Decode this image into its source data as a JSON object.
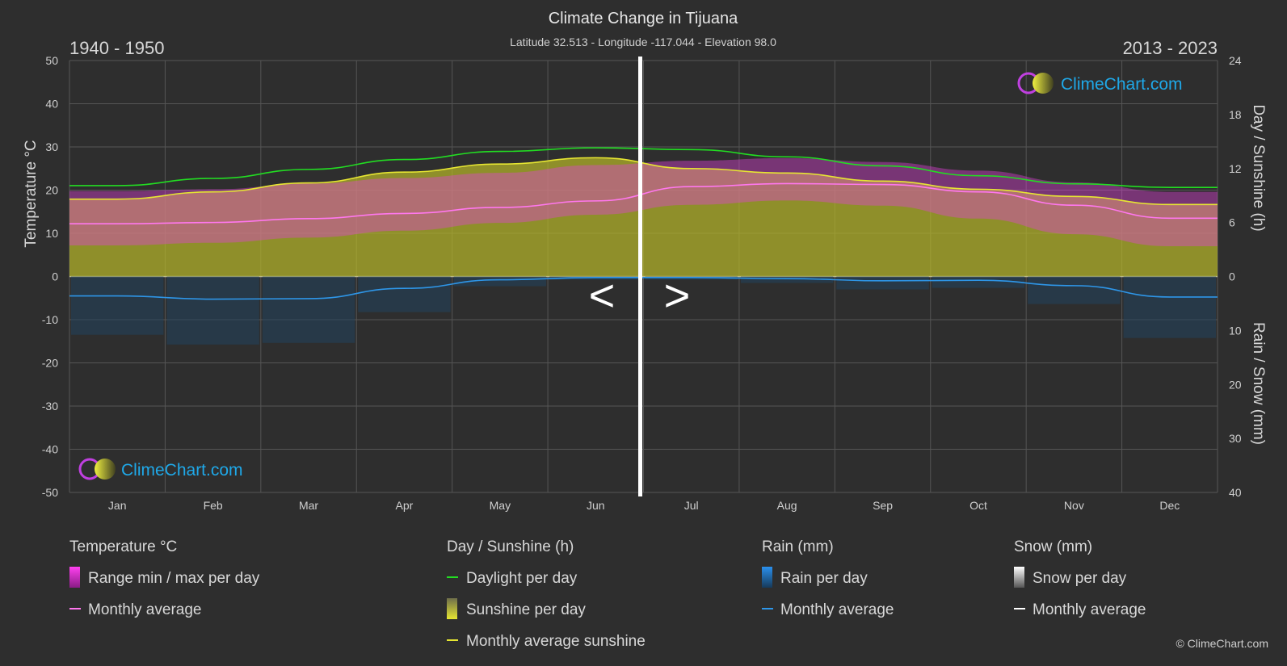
{
  "header": {
    "title": "Climate Change in Tijuana",
    "subtitle": "Latitude 32.513 - Longitude -117.044 - Elevation 98.0",
    "period_left": "1940 - 1950",
    "period_right": "2013 - 2023"
  },
  "nav": {
    "prev_label": "<",
    "next_label": ">"
  },
  "brand": {
    "name": "ClimeChart.com",
    "copyright": "© ClimeChart.com"
  },
  "colors": {
    "background": "#2e2e2e",
    "temperature_range": "#e040d8",
    "temperature_avg": "#ff77ee",
    "daylight": "#22dd22",
    "sunshine": "#b5b52a",
    "sunshine_avg": "#e6e632",
    "rain": "#1f7fd0",
    "rain_avg": "#2e96e8",
    "snow": "#dddddd"
  },
  "chart_data": {
    "type": "area",
    "months": [
      "Jan",
      "Feb",
      "Mar",
      "Apr",
      "May",
      "Jun",
      "Jul",
      "Aug",
      "Sep",
      "Oct",
      "Nov",
      "Dec"
    ],
    "axes": {
      "left": {
        "label": "Temperature °C",
        "range": [
          -50,
          50
        ],
        "ticks": [
          50,
          40,
          30,
          20,
          10,
          0,
          -10,
          -20,
          -30,
          -40,
          -50
        ]
      },
      "right_top": {
        "label": "Day / Sunshine (h)",
        "range": [
          0,
          24
        ],
        "ticks": [
          24,
          18,
          12,
          6,
          0
        ]
      },
      "right_bottom": {
        "label": "Rain / Snow (mm)",
        "range": [
          0,
          40
        ],
        "ticks": [
          0,
          10,
          20,
          30,
          40
        ]
      }
    },
    "grid": true,
    "divider_month_position": 6,
    "series": {
      "daylight_h": [
        10.1,
        10.9,
        11.9,
        13.0,
        13.9,
        14.3,
        14.1,
        13.3,
        12.3,
        11.2,
        10.3,
        9.9
      ],
      "sunshine_avg_h_before": [
        8.6,
        9.4,
        10.4,
        11.6,
        12.5,
        13.2
      ],
      "sunshine_avg_h_after": [
        12.0,
        11.5,
        10.6,
        9.7,
        8.9,
        8.0
      ],
      "temp_avg_c_before": [
        12.2,
        12.5,
        13.4,
        14.6,
        16.0,
        17.5
      ],
      "temp_avg_c_after": [
        20.8,
        21.5,
        21.3,
        19.6,
        16.5,
        13.5
      ],
      "temp_max_c": [
        19.8,
        20.2,
        21.5,
        22.8,
        24.0,
        25.8,
        26.8,
        27.4,
        26.5,
        24.5,
        21.8,
        19.6
      ],
      "temp_min_c": [
        7.2,
        7.8,
        9.0,
        10.6,
        12.4,
        14.3,
        16.6,
        17.6,
        16.4,
        13.4,
        9.8,
        7.0
      ],
      "rain_avg_mm": [
        3.6,
        4.2,
        4.1,
        2.2,
        0.6,
        0.2,
        0.2,
        0.4,
        0.8,
        0.7,
        1.7,
        3.8
      ]
    }
  },
  "legend": {
    "temperature": {
      "heading": "Temperature °C",
      "range_label": "Range min / max per day",
      "avg_label": "Monthly average"
    },
    "sun": {
      "heading": "Day / Sunshine (h)",
      "daylight_label": "Daylight per day",
      "sunshine_label": "Sunshine per day",
      "avg_label": "Monthly average sunshine"
    },
    "rain": {
      "heading": "Rain (mm)",
      "per_day_label": "Rain per day",
      "avg_label": "Monthly average"
    },
    "snow": {
      "heading": "Snow (mm)",
      "per_day_label": "Snow per day",
      "avg_label": "Monthly average"
    }
  }
}
